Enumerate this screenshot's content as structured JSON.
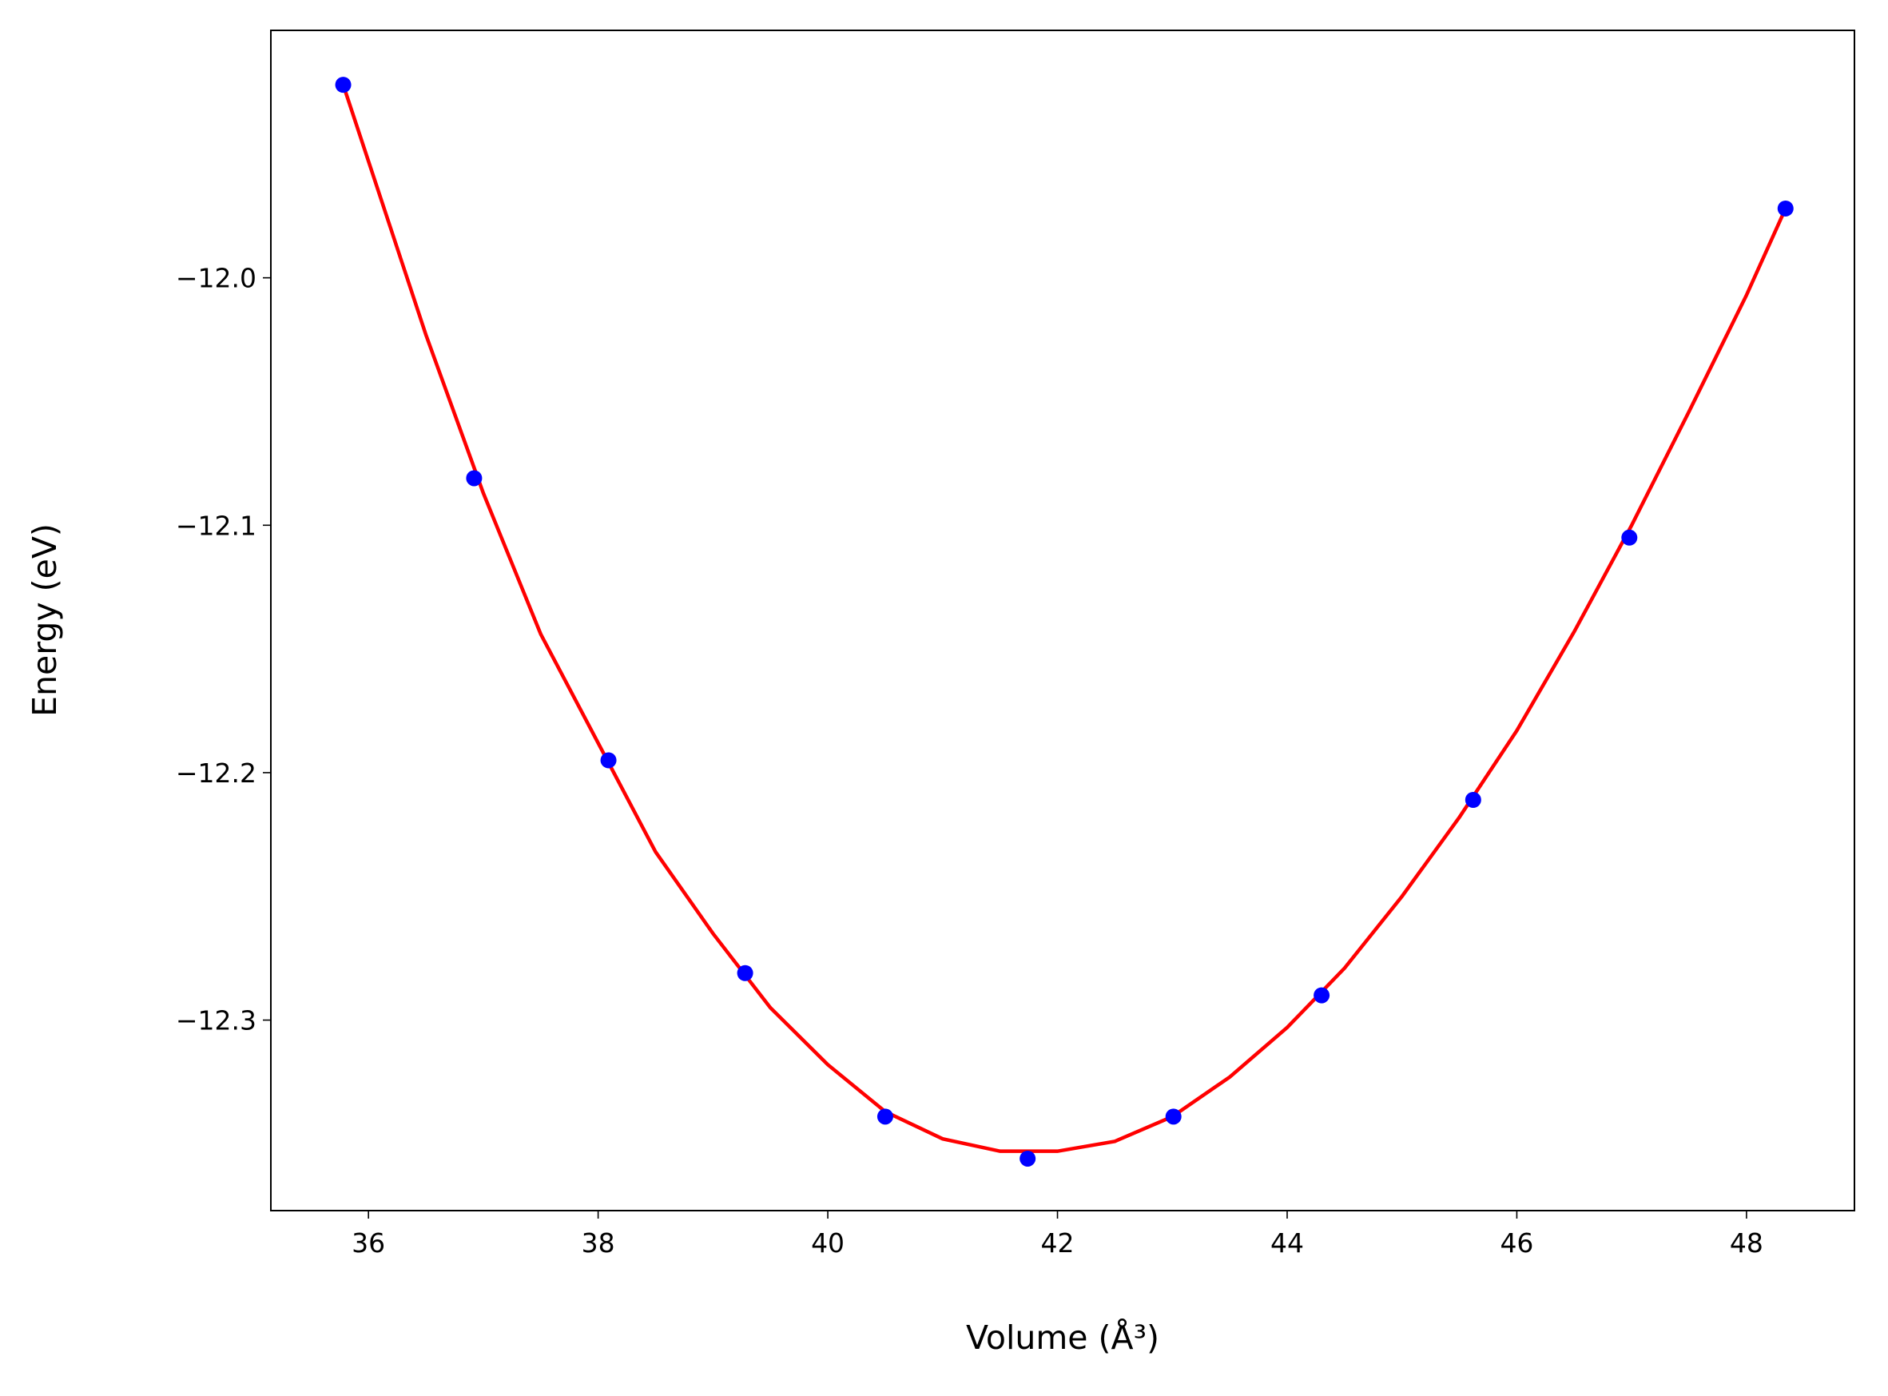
{
  "chart_data": {
    "type": "line",
    "x_label": "Volume (Å³)",
    "y_label": "Energy (eV)",
    "xlim": [
      35.15,
      48.94
    ],
    "ylim": [
      -12.377,
      -11.9
    ],
    "xticks": [
      36,
      38,
      40,
      42,
      44,
      46,
      48
    ],
    "yticks": [
      {
        "value": -12.0,
        "label": "−12.0"
      },
      {
        "value": -12.1,
        "label": "−12.1"
      },
      {
        "value": -12.2,
        "label": "−12.2"
      },
      {
        "value": -12.3,
        "label": "−12.3"
      }
    ],
    "series": [
      {
        "style": "line",
        "color": "#ff0000",
        "x": [
          35.78,
          36.5,
          37.0,
          37.5,
          38.0,
          38.5,
          39.0,
          39.5,
          40.0,
          40.5,
          41.0,
          41.5,
          42.0,
          42.5,
          43.0,
          43.5,
          44.0,
          44.5,
          45.0,
          45.5,
          46.0,
          46.5,
          47.0,
          47.5,
          48.0,
          48.34
        ],
        "values": [
          -11.922,
          -12.023,
          -12.087,
          -12.144,
          -12.188,
          -12.232,
          -12.265,
          -12.295,
          -12.318,
          -12.337,
          -12.348,
          -12.353,
          -12.353,
          -12.349,
          -12.339,
          -12.323,
          -12.303,
          -12.279,
          -12.25,
          -12.218,
          -12.183,
          -12.143,
          -12.1,
          -12.054,
          -12.007,
          -11.972
        ]
      },
      {
        "style": "marker",
        "color": "#0000ff",
        "x": [
          35.78,
          36.92,
          38.09,
          39.28,
          40.5,
          41.74,
          43.01,
          44.3,
          45.62,
          46.98,
          48.34
        ],
        "values": [
          -11.922,
          -12.081,
          -12.195,
          -12.281,
          -12.339,
          -12.356,
          -12.339,
          -12.29,
          -12.211,
          -12.105,
          -11.972
        ]
      }
    ]
  }
}
